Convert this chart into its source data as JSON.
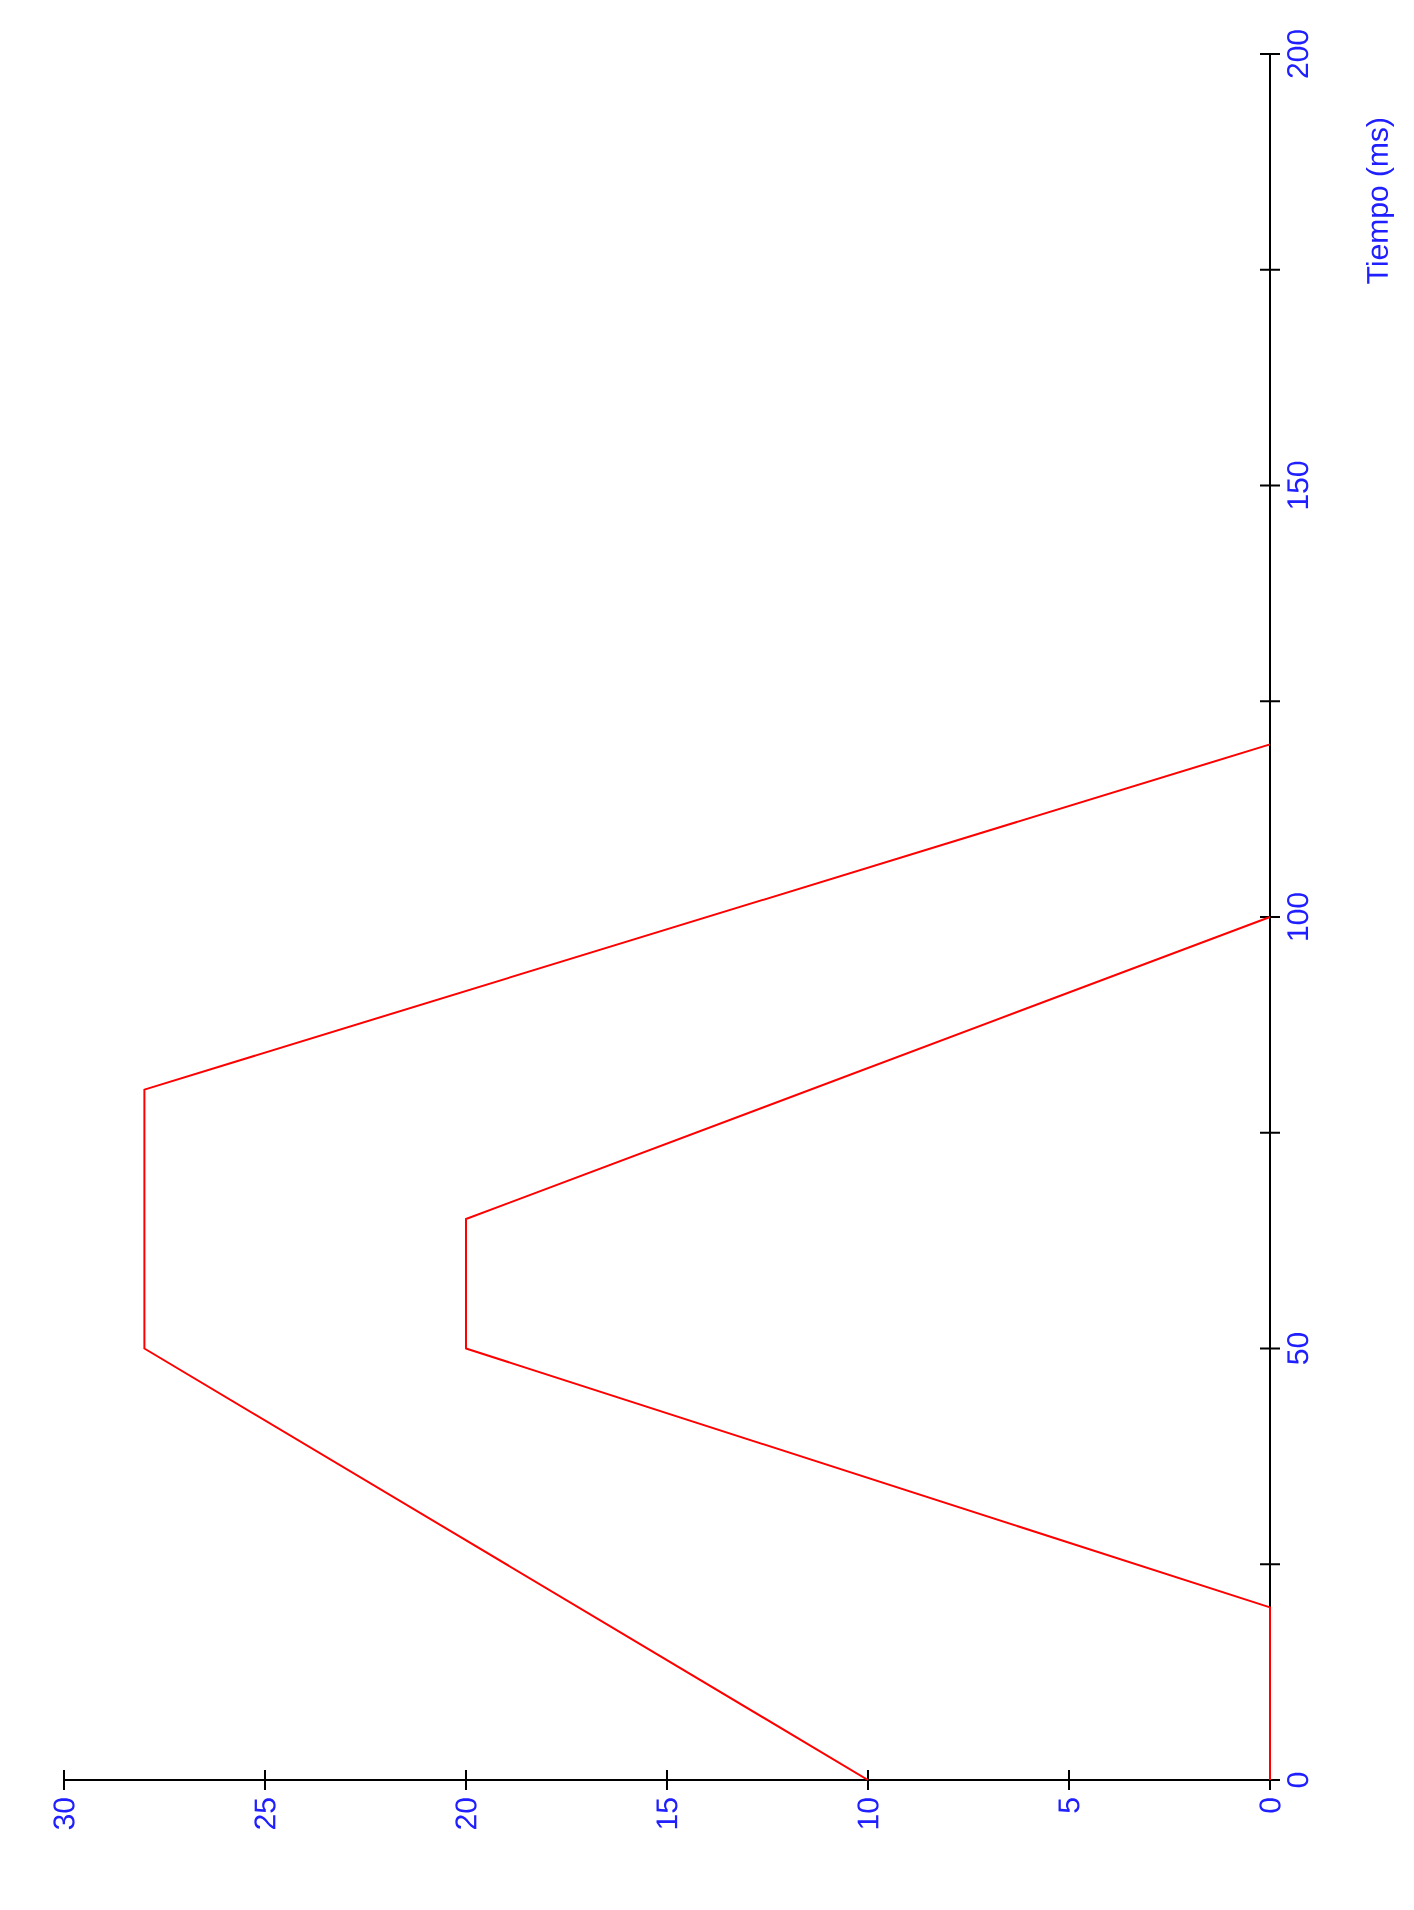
{
  "chart_data": {
    "type": "line",
    "ylabel": "Tiempo (ms)",
    "xlim": [
      30,
      0
    ],
    "ylim": [
      0,
      200
    ],
    "xticks": [
      0,
      5,
      10,
      15,
      20,
      25,
      30
    ],
    "yticks": [
      0,
      {
        "value": 25,
        "label": null
      },
      50,
      {
        "value": 75,
        "label": null
      },
      100,
      {
        "value": 125,
        "label": null
      },
      150,
      {
        "value": 175,
        "label": null
      },
      200
    ],
    "series": [
      {
        "color": "#ff0000",
        "x": [
          10,
          28,
          28,
          0
        ],
        "values": [
          0,
          50,
          80,
          120
        ]
      },
      {
        "color": "#ff0000",
        "x": [
          0,
          0,
          20,
          20,
          0
        ],
        "values": [
          0,
          20,
          50,
          65,
          100
        ]
      }
    ],
    "marker": "none",
    "line_style": "solid"
  }
}
